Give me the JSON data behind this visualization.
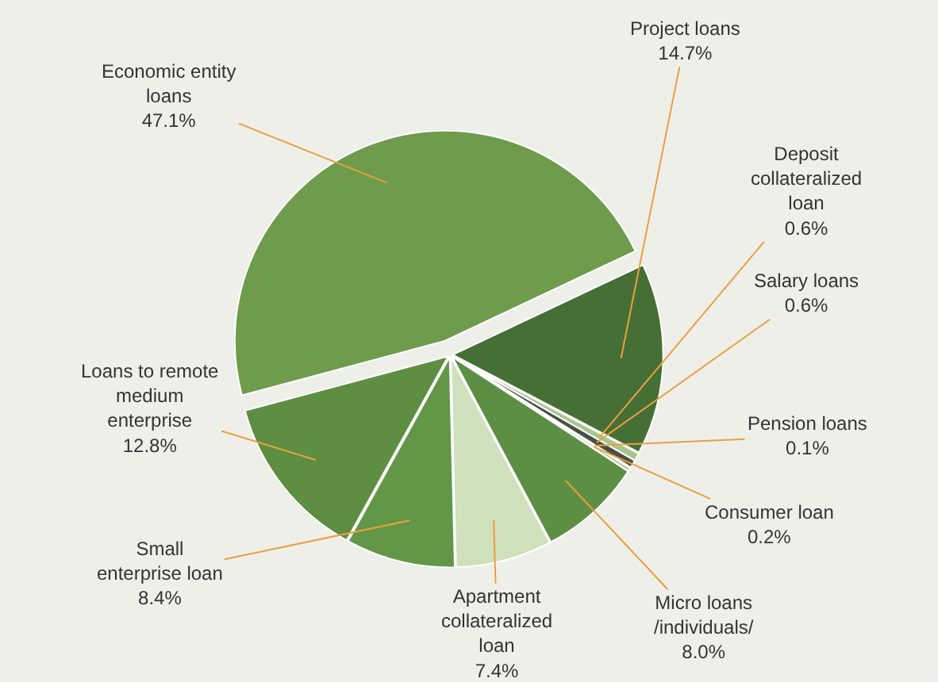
{
  "chart_data": {
    "type": "pie",
    "categories": [
      "Economic entity loans",
      "Project loans",
      "Deposit collateralized loan",
      "Salary loans",
      "Pension loans",
      "Consumer loan",
      "Micro loans /individuals/",
      "Apartment collateralized loan",
      "Small enterprise loan",
      "Loans to remote medium enterprise"
    ],
    "values": [
      47.1,
      14.7,
      0.6,
      0.6,
      0.1,
      0.2,
      8.0,
      7.4,
      8.4,
      12.8
    ],
    "value_labels": [
      "47.1%",
      "14.7%",
      "0.6%",
      "0.6%",
      "0.1%",
      "0.2%",
      "8.0%",
      "7.4%",
      "8.4%",
      "12.8%"
    ],
    "colors": [
      "#6e9c4c",
      "#466f35",
      "#a9c58f",
      "#4a4f46",
      "#d7e4c6",
      "#8bb56c",
      "#5c8f43",
      "#cfe0bd",
      "#629748",
      "#5d8e41"
    ],
    "legend": false
  }
}
